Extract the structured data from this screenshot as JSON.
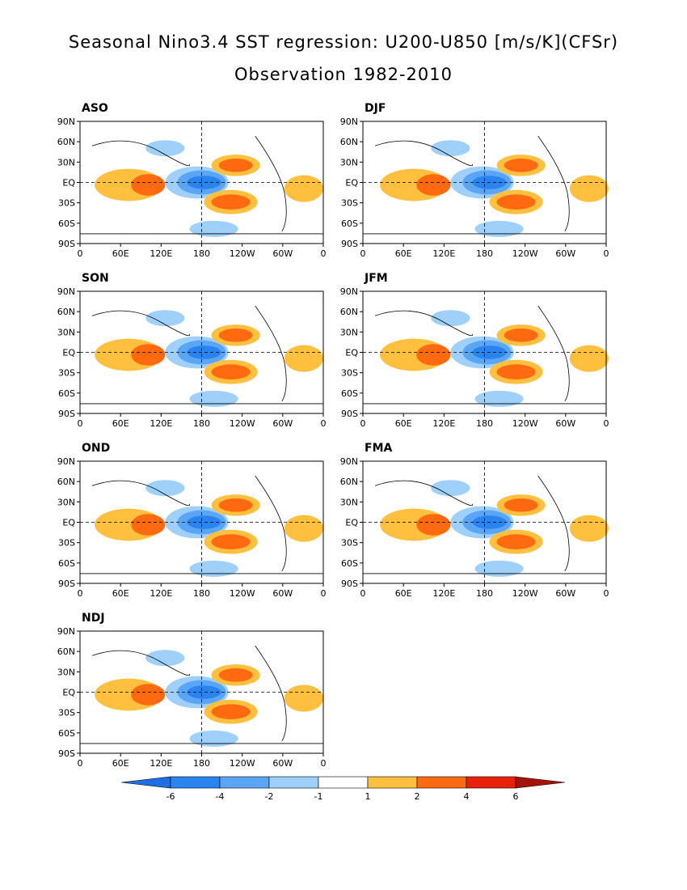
{
  "title": "Seasonal Nino3.4 SST regression: U200-U850 [m/s/K](CFSr)",
  "subtitle": "Observation 1982-2010",
  "panels": [
    {
      "label": "ASO"
    },
    {
      "label": "DJF"
    },
    {
      "label": "SON"
    },
    {
      "label": "JFM"
    },
    {
      "label": "OND"
    },
    {
      "label": "FMA"
    },
    {
      "label": "NDJ"
    }
  ],
  "lat_ticks": [
    "90N",
    "60N",
    "30N",
    "EQ",
    "30S",
    "60S",
    "90S"
  ],
  "lon_ticks": [
    "0",
    "60E",
    "120E",
    "180",
    "120W",
    "60W",
    "0"
  ],
  "colorbar": {
    "labels": [
      "-6",
      "-4",
      "-2",
      "-1",
      "1",
      "2",
      "4",
      "6"
    ],
    "colors": [
      "#1e6ee6",
      "#2a84f0",
      "#5aa5f5",
      "#9fd0fa",
      "#ffffff",
      "#ffc040",
      "#ff6a10",
      "#e8220a",
      "#a5120a"
    ]
  },
  "colors": {
    "neg_strong": "#2a84f0",
    "neg_mid": "#5aa5f5",
    "neg_weak": "#9fd0fa",
    "pos_weak": "#ffc040",
    "pos_mid": "#ff6a10",
    "pos_strong": "#e8220a"
  }
}
